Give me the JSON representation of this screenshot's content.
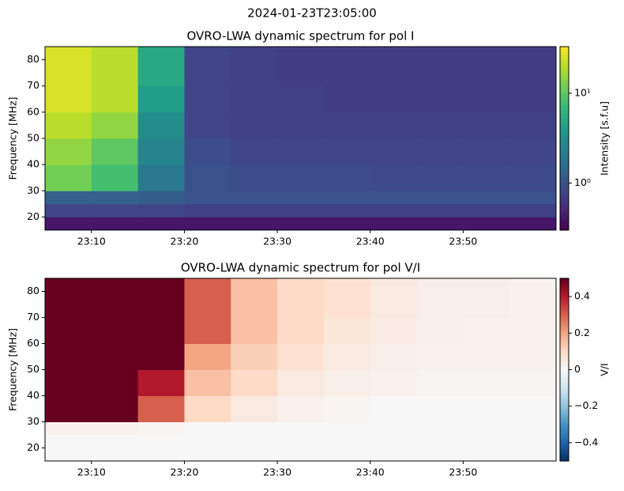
{
  "title": "2024-01-23T23:05:00",
  "chart_data": [
    {
      "type": "heatmap",
      "title": "OVRO-LWA dynamic spectrum for pol I",
      "ylabel": "Frequency [MHz]",
      "xlim": [
        5,
        60
      ],
      "xticks": [
        {
          "value": 10,
          "label": "23:10"
        },
        {
          "value": 20,
          "label": "23:20"
        },
        {
          "value": 30,
          "label": "23:30"
        },
        {
          "value": 40,
          "label": "23:40"
        },
        {
          "value": 50,
          "label": "23:50"
        }
      ],
      "ylim": [
        15,
        85
      ],
      "yticks": [
        20,
        30,
        40,
        50,
        60,
        70,
        80
      ],
      "xbins": [
        5,
        10,
        15,
        20,
        25,
        30,
        35,
        40,
        45,
        50,
        55,
        60
      ],
      "ybins": [
        15,
        20,
        25,
        30,
        40,
        50,
        60,
        70,
        85
      ],
      "z": [
        [
          0.4,
          0.4,
          0.4,
          0.4,
          0.4,
          0.4,
          0.4,
          0.4,
          0.4,
          0.4,
          0.4
        ],
        [
          0.8,
          0.8,
          0.8,
          0.75,
          0.75,
          0.75,
          0.75,
          0.75,
          0.75,
          0.75,
          0.75
        ],
        [
          1.3,
          1.3,
          1.2,
          1.0,
          1.0,
          1.0,
          1.0,
          1.0,
          1.0,
          1.0,
          1.0
        ],
        [
          12,
          8,
          2,
          1.0,
          0.9,
          0.9,
          0.9,
          0.85,
          0.85,
          0.85,
          0.85
        ],
        [
          15,
          10,
          2.5,
          0.9,
          0.8,
          0.8,
          0.8,
          0.8,
          0.8,
          0.8,
          0.8
        ],
        [
          20,
          15,
          3,
          0.8,
          0.75,
          0.75,
          0.75,
          0.75,
          0.75,
          0.75,
          0.75
        ],
        [
          25,
          20,
          4,
          0.8,
          0.75,
          0.75,
          0.7,
          0.7,
          0.7,
          0.7,
          0.7
        ],
        [
          25,
          20,
          5,
          0.8,
          0.75,
          0.7,
          0.7,
          0.7,
          0.7,
          0.7,
          0.7
        ]
      ],
      "colormap": "viridis",
      "cscale": "log",
      "clim": [
        0.3,
        33
      ],
      "clabel": "Intensity [s.f.u]",
      "cticks": [
        {
          "value": 1,
          "label": "10⁰"
        },
        {
          "value": 10,
          "label": "10¹"
        }
      ]
    },
    {
      "type": "heatmap",
      "title": "OVRO-LWA dynamic spectrum for pol V/I",
      "ylabel": "Frequency [MHz]",
      "xlim": [
        5,
        60
      ],
      "xticks": [
        {
          "value": 10,
          "label": "23:10"
        },
        {
          "value": 20,
          "label": "23:20"
        },
        {
          "value": 30,
          "label": "23:30"
        },
        {
          "value": 40,
          "label": "23:40"
        },
        {
          "value": 50,
          "label": "23:50"
        }
      ],
      "ylim": [
        15,
        85
      ],
      "yticks": [
        20,
        30,
        40,
        50,
        60,
        70,
        80
      ],
      "xbins": [
        5,
        10,
        15,
        20,
        25,
        30,
        35,
        40,
        45,
        50,
        55,
        60
      ],
      "ybins": [
        15,
        20,
        25,
        30,
        40,
        50,
        60,
        70,
        85
      ],
      "z": [
        [
          0,
          0,
          0,
          0,
          0,
          0,
          0,
          0,
          0,
          0,
          0
        ],
        [
          0,
          0,
          0,
          0,
          0,
          0,
          0,
          0,
          0,
          0,
          0
        ],
        [
          0.02,
          0.02,
          0.01,
          0,
          0,
          0,
          0,
          0,
          0,
          0,
          0
        ],
        [
          0.5,
          0.5,
          0.3,
          0.1,
          0.05,
          0.02,
          0.01,
          0,
          0,
          0,
          0
        ],
        [
          0.5,
          0.5,
          0.4,
          0.15,
          0.1,
          0.05,
          0.03,
          0.02,
          0.01,
          0.01,
          0.01
        ],
        [
          0.5,
          0.5,
          0.5,
          0.2,
          0.12,
          0.08,
          0.05,
          0.03,
          0.02,
          0.02,
          0.02
        ],
        [
          0.5,
          0.5,
          0.5,
          0.3,
          0.15,
          0.1,
          0.06,
          0.04,
          0.03,
          0.02,
          0.02
        ],
        [
          0.5,
          0.5,
          0.5,
          0.3,
          0.15,
          0.1,
          0.08,
          0.05,
          0.03,
          0.03,
          0.02
        ]
      ],
      "colormap": "RdBu_r",
      "cscale": "linear",
      "clim": [
        -0.5,
        0.5
      ],
      "clabel": "V/I",
      "cticks": [
        {
          "value": -0.4,
          "label": "−0.4"
        },
        {
          "value": -0.2,
          "label": "−0.2"
        },
        0.0,
        0.2,
        0.4
      ]
    }
  ]
}
